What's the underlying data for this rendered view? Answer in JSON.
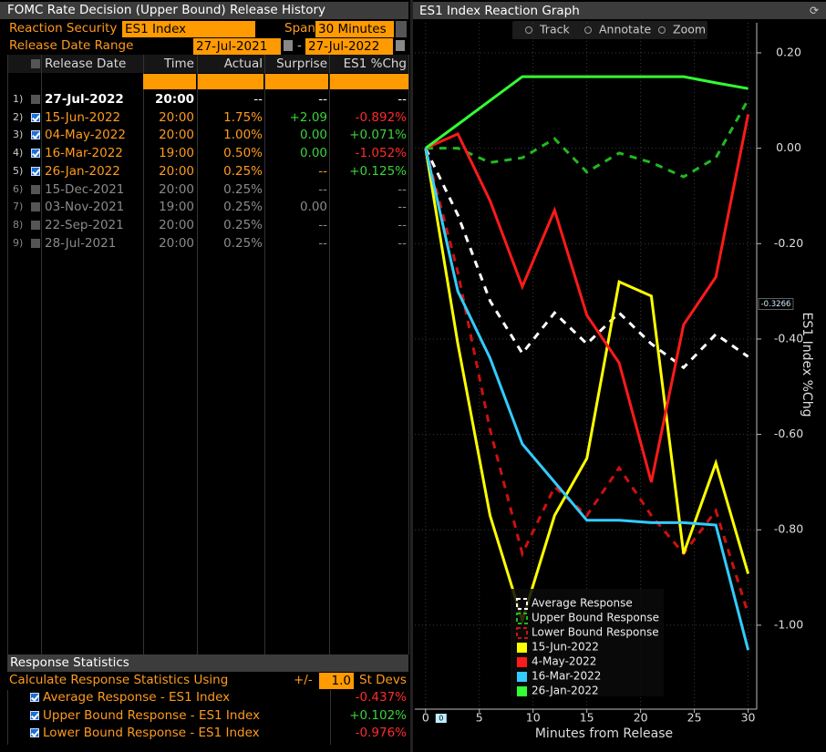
{
  "left_panel": {
    "title": "FOMC Rate Decision (Upper Bound) Release History",
    "reaction_security_label": "Reaction Security",
    "reaction_security": "ES1 Index",
    "span_label": "Span",
    "span": "30 Minutes",
    "date_range_label": "Release Date Range",
    "date_from": "27-Jul-2021",
    "date_separator": "-",
    "date_to": "27-Jul-2022",
    "table": {
      "columns": [
        "Release Date",
        "Time",
        "Actual",
        "Surprise",
        "ES1 %Chg"
      ],
      "rows": [
        {
          "index": "1)",
          "checked": false,
          "cells": [
            "27-Jul-2022",
            "20:00",
            "--",
            "--",
            "--"
          ]
        },
        {
          "index": "2)",
          "checked": true,
          "cells": [
            "15-Jun-2022",
            "20:00",
            "1.75%",
            "+2.09",
            "-0.892%"
          ]
        },
        {
          "index": "3)",
          "checked": true,
          "cells": [
            "04-May-2022",
            "20:00",
            "1.00%",
            "0.00",
            "+0.071%"
          ]
        },
        {
          "index": "4)",
          "checked": true,
          "cells": [
            "16-Mar-2022",
            "19:00",
            "0.50%",
            "0.00",
            "-1.052%"
          ]
        },
        {
          "index": "5)",
          "checked": true,
          "cells": [
            "26-Jan-2022",
            "20:00",
            "0.25%",
            "--",
            "+0.125%"
          ]
        },
        {
          "index": "6)",
          "checked": false,
          "cells": [
            "15-Dec-2021",
            "20:00",
            "0.25%",
            "--",
            "--"
          ]
        },
        {
          "index": "7)",
          "checked": false,
          "cells": [
            "03-Nov-2021",
            "19:00",
            "0.25%",
            "0.00",
            "--"
          ]
        },
        {
          "index": "8)",
          "checked": false,
          "cells": [
            "22-Sep-2021",
            "20:00",
            "0.25%",
            "--",
            "--"
          ]
        },
        {
          "index": "9)",
          "checked": false,
          "cells": [
            "28-Jul-2021",
            "20:00",
            "0.25%",
            "--",
            "--"
          ]
        }
      ]
    }
  },
  "statistics": {
    "title": "Response Statistics",
    "using_label": "Calculate Response Statistics Using",
    "plus_minus": "+/-",
    "st_devs_value": "1.0",
    "st_devs_label": "St Devs",
    "rows": [
      {
        "checked": true,
        "label": "Average Response - ES1 Index",
        "value": "-0.437%"
      },
      {
        "checked": true,
        "label": "Upper Bound Response - ES1 Index",
        "value": "+0.102%"
      },
      {
        "checked": true,
        "label": "Lower Bound Response - ES1 Index",
        "value": "-0.976%"
      }
    ]
  },
  "chart_data": {
    "type": "line",
    "title": "ES1 Index Reaction Graph",
    "toolbar": [
      "Track",
      "Annotate",
      "Zoom"
    ],
    "xlabel": "Minutes from Release",
    "ylabel": "ES1 Index %Chg",
    "x": [
      0,
      3,
      6,
      9,
      12,
      15,
      18,
      21,
      24,
      27,
      30
    ],
    "xlim": [
      -1,
      30.8
    ],
    "xticks": [
      0,
      5,
      10,
      15,
      20,
      25,
      30
    ],
    "ylim": [
      -1.176,
      0.263
    ],
    "yticks": [
      {
        "value": 0.2,
        "label": "0.20"
      },
      {
        "value": 0,
        "label": "0.00"
      },
      {
        "value": -0.2,
        "label": "-0.20"
      },
      {
        "value": -0.4,
        "label": "-0.40"
      },
      {
        "value": -0.6,
        "label": "-0.60"
      },
      {
        "value": -0.8,
        "label": "-0.80"
      },
      {
        "value": -1,
        "label": "-1.00"
      }
    ],
    "grid": true,
    "legend": "lower left",
    "crosshair": {
      "y": {
        "value": -0.3266,
        "label": "-0.3266"
      },
      "x": {
        "value": 0,
        "label": "0"
      }
    },
    "series": [
      {
        "name": "Average Response",
        "color": "#ffffff",
        "dashed": true,
        "values": [
          0,
          -0.14,
          -0.32,
          -0.43,
          -0.345,
          -0.41,
          -0.345,
          -0.41,
          -0.46,
          -0.39,
          -0.437
        ]
      },
      {
        "name": "Upper Bound Response",
        "color": "#22b822",
        "dashed": true,
        "values": [
          0,
          0.0,
          -0.03,
          -0.02,
          0.02,
          -0.05,
          -0.01,
          -0.03,
          -0.06,
          -0.02,
          0.102
        ]
      },
      {
        "name": "Lower Bound Response",
        "color": "#cc1111",
        "dashed": true,
        "values": [
          0,
          -0.26,
          -0.59,
          -0.85,
          -0.71,
          -0.77,
          -0.67,
          -0.77,
          -0.85,
          -0.76,
          -0.976
        ]
      },
      {
        "name": "15-Jun-2022",
        "color": "#ffff00",
        "dashed": false,
        "values": [
          0,
          -0.41,
          -0.77,
          -0.99,
          -0.77,
          -0.65,
          -0.28,
          -0.31,
          -0.85,
          -0.66,
          -0.892
        ]
      },
      {
        "name": "4-May-2022",
        "color": "#ff1a1a",
        "dashed": false,
        "values": [
          0,
          0.03,
          -0.11,
          -0.29,
          -0.13,
          -0.35,
          -0.45,
          -0.7,
          -0.37,
          -0.27,
          0.071
        ]
      },
      {
        "name": "16-Mar-2022",
        "color": "#33ccff",
        "dashed": false,
        "values": [
          0,
          -0.3,
          -0.44,
          -0.62,
          -0.7,
          -0.78,
          -0.78,
          -0.785,
          -0.785,
          -0.79,
          -1.052
        ]
      },
      {
        "name": "26-Jan-2022",
        "color": "#33ff33",
        "dashed": false,
        "values": [
          0,
          0.05,
          0.1,
          0.15,
          0.15,
          0.15,
          0.15,
          0.15,
          0.15,
          0.137,
          0.125
        ]
      }
    ]
  }
}
